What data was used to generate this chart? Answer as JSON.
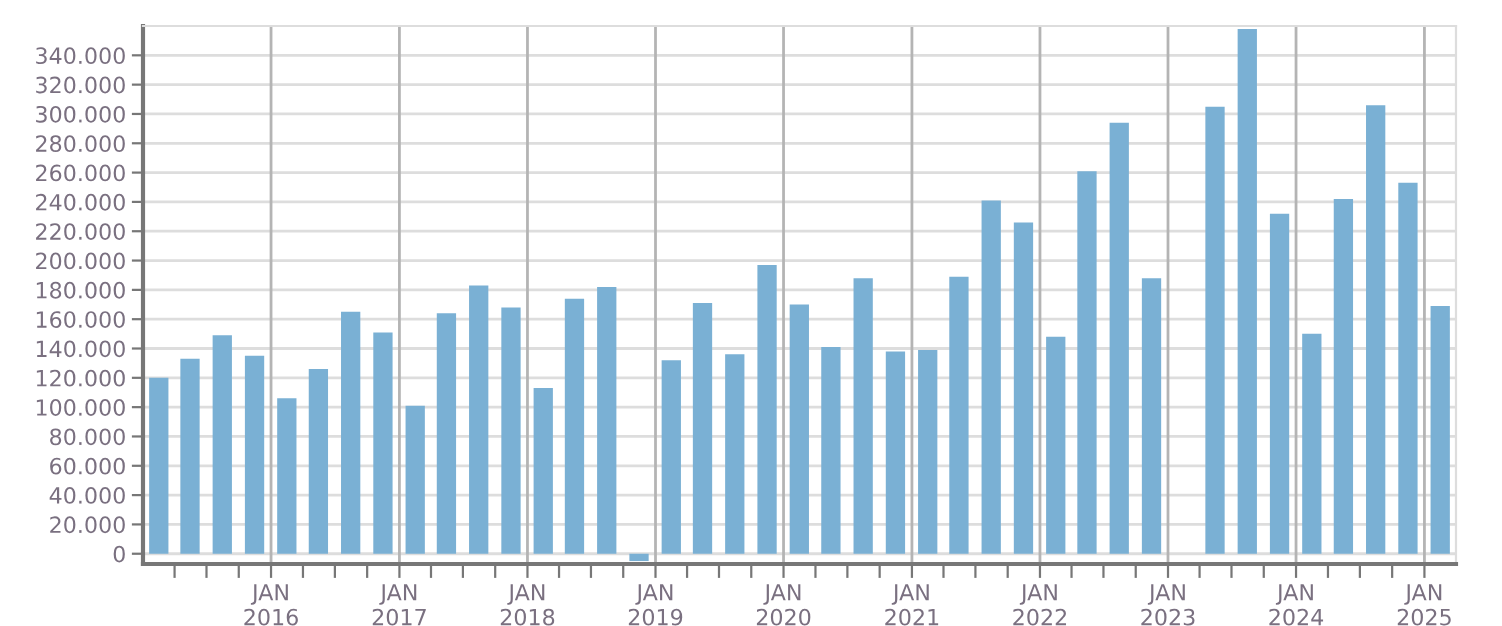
{
  "chart_data": {
    "type": "bar",
    "color": "#7ab0d4",
    "x": [
      "2015-02-15",
      "2015-05-15",
      "2015-08-15",
      "2015-11-15",
      "2016-02-15",
      "2016-05-15",
      "2016-08-15",
      "2016-11-15",
      "2017-02-15",
      "2017-05-15",
      "2017-08-15",
      "2017-11-15",
      "2018-02-15",
      "2018-05-15",
      "2018-08-15",
      "2018-11-15",
      "2019-02-15",
      "2019-05-15",
      "2019-08-15",
      "2019-11-15",
      "2020-02-15",
      "2020-05-15",
      "2020-08-15",
      "2020-11-15",
      "2021-02-15",
      "2021-05-15",
      "2021-08-15",
      "2021-11-15",
      "2022-02-15",
      "2022-05-15",
      "2022-08-15",
      "2022-11-15",
      "2023-02-15",
      "2023-05-15",
      "2023-08-15",
      "2023-11-15",
      "2024-02-15",
      "2024-05-15",
      "2024-08-15",
      "2024-11-15",
      "2025-02-15"
    ],
    "values": [
      120000,
      133000,
      149000,
      135000,
      106000,
      126000,
      165000,
      151000,
      101000,
      164000,
      183000,
      168000,
      113000,
      174000,
      182000,
      -5000,
      132000,
      171000,
      136000,
      197000,
      170000,
      141000,
      188000,
      138000,
      139000,
      189000,
      241000,
      226000,
      148000,
      261000,
      294000,
      188000,
      null,
      305000,
      358000,
      232000,
      150000,
      242000,
      306000,
      253000,
      169000
    ],
    "xlim": [
      "2015-01-01",
      "2025-04-01"
    ],
    "xticks": [
      {
        "value": "2015-04-01",
        "label": null
      },
      {
        "value": "2015-07-01",
        "label": null
      },
      {
        "value": "2015-10-01",
        "label": null
      },
      {
        "value": "2016-01-01",
        "label": "JAN\n2016"
      },
      {
        "value": "2016-04-01",
        "label": null
      },
      {
        "value": "2016-07-01",
        "label": null
      },
      {
        "value": "2016-10-01",
        "label": null
      },
      {
        "value": "2017-01-01",
        "label": "JAN\n2017"
      },
      {
        "value": "2017-04-01",
        "label": null
      },
      {
        "value": "2017-07-01",
        "label": null
      },
      {
        "value": "2017-10-01",
        "label": null
      },
      {
        "value": "2018-01-01",
        "label": "JAN\n2018"
      },
      {
        "value": "2018-04-01",
        "label": null
      },
      {
        "value": "2018-07-01",
        "label": null
      },
      {
        "value": "2018-10-01",
        "label": null
      },
      {
        "value": "2019-01-01",
        "label": "JAN\n2019"
      },
      {
        "value": "2019-04-01",
        "label": null
      },
      {
        "value": "2019-07-01",
        "label": null
      },
      {
        "value": "2019-10-01",
        "label": null
      },
      {
        "value": "2020-01-01",
        "label": "JAN\n2020"
      },
      {
        "value": "2020-04-01",
        "label": null
      },
      {
        "value": "2020-07-01",
        "label": null
      },
      {
        "value": "2020-10-01",
        "label": null
      },
      {
        "value": "2021-01-01",
        "label": "JAN\n2021"
      },
      {
        "value": "2021-04-01",
        "label": null
      },
      {
        "value": "2021-07-01",
        "label": null
      },
      {
        "value": "2021-10-01",
        "label": null
      },
      {
        "value": "2022-01-01",
        "label": "JAN\n2022"
      },
      {
        "value": "2022-04-01",
        "label": null
      },
      {
        "value": "2022-07-01",
        "label": null
      },
      {
        "value": "2022-10-01",
        "label": null
      },
      {
        "value": "2023-01-01",
        "label": "JAN\n2023"
      },
      {
        "value": "2023-04-01",
        "label": null
      },
      {
        "value": "2023-07-01",
        "label": null
      },
      {
        "value": "2023-10-01",
        "label": null
      },
      {
        "value": "2024-01-01",
        "label": "JAN\n2024"
      },
      {
        "value": "2024-04-01",
        "label": null
      },
      {
        "value": "2024-07-01",
        "label": null
      },
      {
        "value": "2024-10-01",
        "label": null
      },
      {
        "value": "2025-01-01",
        "label": "JAN\n2025"
      }
    ],
    "ylim": [
      -7000,
      360000
    ],
    "yticks": [
      {
        "value": 0,
        "label": "0"
      },
      {
        "value": 20000,
        "label": "20.000"
      },
      {
        "value": 40000,
        "label": "40.000"
      },
      {
        "value": 60000,
        "label": "60.000"
      },
      {
        "value": 80000,
        "label": "80.000"
      },
      {
        "value": 100000,
        "label": "100.000"
      },
      {
        "value": 120000,
        "label": "120.000"
      },
      {
        "value": 140000,
        "label": "140.000"
      },
      {
        "value": 160000,
        "label": "160.000"
      },
      {
        "value": 180000,
        "label": "180.000"
      },
      {
        "value": 200000,
        "label": "200.000"
      },
      {
        "value": 220000,
        "label": "220.000"
      },
      {
        "value": 240000,
        "label": "240.000"
      },
      {
        "value": 260000,
        "label": "260.000"
      },
      {
        "value": 280000,
        "label": "280.000"
      },
      {
        "value": 300000,
        "label": "300.000"
      },
      {
        "value": 320000,
        "label": "320.000"
      },
      {
        "value": 340000,
        "label": "340.000"
      }
    ],
    "grid": true
  }
}
